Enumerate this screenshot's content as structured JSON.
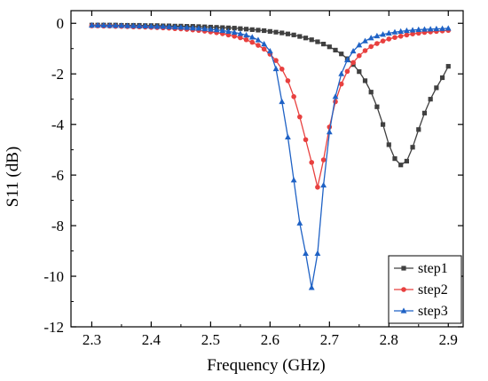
{
  "chart_data": {
    "type": "line",
    "xlabel": "Frequency (GHz)",
    "ylabel": "S11 (dB)",
    "xlim": [
      2.265,
      2.925
    ],
    "ylim": [
      -12,
      0.5
    ],
    "xticks": [
      "2.3",
      "2.4",
      "2.5",
      "2.6",
      "2.7",
      "2.8",
      "2.9"
    ],
    "yticks": [
      "0",
      "-2",
      "-4",
      "-6",
      "-8",
      "-10",
      "-12"
    ],
    "legend": "bottom-right",
    "grid": false,
    "series": [
      {
        "name": "step1",
        "color": "#404040",
        "marker": "square",
        "x": [
          2.3,
          2.31,
          2.32,
          2.33,
          2.34,
          2.35,
          2.36,
          2.37,
          2.38,
          2.39,
          2.4,
          2.41,
          2.42,
          2.43,
          2.44,
          2.45,
          2.46,
          2.47,
          2.48,
          2.49,
          2.5,
          2.51,
          2.52,
          2.53,
          2.54,
          2.55,
          2.56,
          2.57,
          2.58,
          2.59,
          2.6,
          2.61,
          2.62,
          2.63,
          2.64,
          2.65,
          2.66,
          2.67,
          2.68,
          2.69,
          2.7,
          2.71,
          2.72,
          2.73,
          2.74,
          2.75,
          2.76,
          2.77,
          2.78,
          2.79,
          2.8,
          2.81,
          2.82,
          2.83,
          2.84,
          2.85,
          2.86,
          2.87,
          2.88,
          2.89,
          2.9
        ],
        "y": [
          -0.07,
          -0.07,
          -0.07,
          -0.07,
          -0.07,
          -0.08,
          -0.08,
          -0.08,
          -0.08,
          -0.09,
          -0.09,
          -0.09,
          -0.1,
          -0.1,
          -0.11,
          -0.11,
          -0.12,
          -0.12,
          -0.13,
          -0.14,
          -0.15,
          -0.16,
          -0.17,
          -0.18,
          -0.19,
          -0.21,
          -0.23,
          -0.25,
          -0.27,
          -0.29,
          -0.32,
          -0.35,
          -0.38,
          -0.42,
          -0.46,
          -0.52,
          -0.58,
          -0.65,
          -0.73,
          -0.82,
          -0.93,
          -1.06,
          -1.21,
          -1.4,
          -1.63,
          -1.91,
          -2.27,
          -2.72,
          -3.3,
          -4.0,
          -4.8,
          -5.35,
          -5.6,
          -5.45,
          -4.9,
          -4.2,
          -3.55,
          -3.0,
          -2.55,
          -2.15,
          -1.7
        ]
      },
      {
        "name": "step2",
        "color": "#e8403f",
        "marker": "circle",
        "x": [
          2.3,
          2.31,
          2.32,
          2.33,
          2.34,
          2.35,
          2.36,
          2.37,
          2.38,
          2.39,
          2.4,
          2.41,
          2.42,
          2.43,
          2.44,
          2.45,
          2.46,
          2.47,
          2.48,
          2.49,
          2.5,
          2.51,
          2.52,
          2.53,
          2.54,
          2.55,
          2.56,
          2.57,
          2.58,
          2.59,
          2.6,
          2.61,
          2.62,
          2.63,
          2.64,
          2.65,
          2.66,
          2.67,
          2.68,
          2.69,
          2.7,
          2.71,
          2.72,
          2.73,
          2.74,
          2.75,
          2.76,
          2.77,
          2.78,
          2.79,
          2.8,
          2.81,
          2.82,
          2.83,
          2.84,
          2.85,
          2.86,
          2.87,
          2.88,
          2.89,
          2.9
        ],
        "y": [
          -0.1,
          -0.1,
          -0.11,
          -0.11,
          -0.12,
          -0.12,
          -0.13,
          -0.14,
          -0.14,
          -0.15,
          -0.16,
          -0.17,
          -0.18,
          -0.19,
          -0.21,
          -0.22,
          -0.24,
          -0.26,
          -0.28,
          -0.31,
          -0.34,
          -0.37,
          -0.41,
          -0.46,
          -0.51,
          -0.57,
          -0.65,
          -0.75,
          -0.87,
          -1.02,
          -1.22,
          -1.47,
          -1.81,
          -2.27,
          -2.9,
          -3.7,
          -4.6,
          -5.5,
          -6.48,
          -5.4,
          -4.1,
          -3.1,
          -2.4,
          -1.9,
          -1.55,
          -1.28,
          -1.08,
          -0.92,
          -0.8,
          -0.7,
          -0.62,
          -0.56,
          -0.51,
          -0.46,
          -0.42,
          -0.39,
          -0.36,
          -0.34,
          -0.32,
          -0.3,
          -0.28
        ]
      },
      {
        "name": "step3",
        "color": "#1f62c5",
        "marker": "triangle",
        "x": [
          2.3,
          2.31,
          2.32,
          2.33,
          2.34,
          2.35,
          2.36,
          2.37,
          2.38,
          2.39,
          2.4,
          2.41,
          2.42,
          2.43,
          2.44,
          2.45,
          2.46,
          2.47,
          2.48,
          2.49,
          2.5,
          2.51,
          2.52,
          2.53,
          2.54,
          2.55,
          2.56,
          2.57,
          2.58,
          2.59,
          2.6,
          2.61,
          2.62,
          2.63,
          2.64,
          2.65,
          2.66,
          2.67,
          2.68,
          2.69,
          2.7,
          2.71,
          2.72,
          2.73,
          2.74,
          2.75,
          2.76,
          2.77,
          2.78,
          2.79,
          2.8,
          2.81,
          2.82,
          2.83,
          2.84,
          2.85,
          2.86,
          2.87,
          2.88,
          2.89,
          2.9
        ],
        "y": [
          -0.08,
          -0.08,
          -0.08,
          -0.09,
          -0.09,
          -0.09,
          -0.1,
          -0.1,
          -0.11,
          -0.11,
          -0.12,
          -0.13,
          -0.13,
          -0.14,
          -0.15,
          -0.16,
          -0.17,
          -0.19,
          -0.2,
          -0.22,
          -0.24,
          -0.26,
          -0.29,
          -0.32,
          -0.36,
          -0.41,
          -0.47,
          -0.55,
          -0.66,
          -0.82,
          -1.1,
          -1.8,
          -3.1,
          -4.5,
          -6.2,
          -7.9,
          -9.1,
          -10.45,
          -9.1,
          -6.4,
          -4.3,
          -2.9,
          -2.0,
          -1.45,
          -1.1,
          -0.86,
          -0.7,
          -0.58,
          -0.5,
          -0.44,
          -0.39,
          -0.35,
          -0.32,
          -0.29,
          -0.27,
          -0.25,
          -0.24,
          -0.23,
          -0.22,
          -0.21,
          -0.2
        ]
      }
    ]
  }
}
